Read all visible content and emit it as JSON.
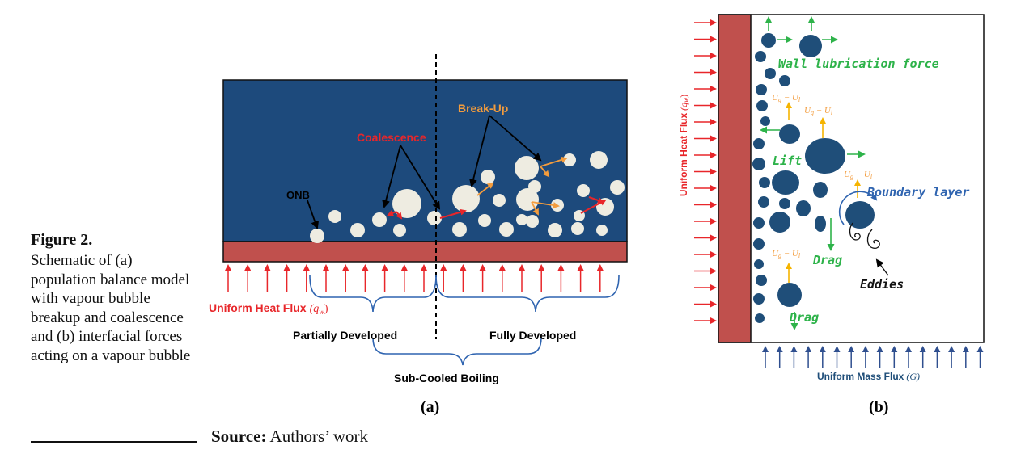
{
  "caption": {
    "label": "Figure 2.",
    "text": "Schematic of (a) population balance model with vapour bubble breakup and coalescence and (b) interfacial forces acting on a vapour bubble"
  },
  "source": {
    "label": "Source:",
    "text": " Authors’ work"
  },
  "panel_a": {
    "tag": "(a)",
    "onb": "ONB",
    "coalescence": "Coalescence",
    "breakup": "Break-Up",
    "heat_flux": "Uniform Heat Flux",
    "heat_flux_symbol": "(q",
    "heat_flux_sub": "w",
    "heat_flux_close": ")",
    "partially": "Partially Developed",
    "fully": "Fully Developed",
    "subcooled": "Sub-Cooled Boiling"
  },
  "panel_b": {
    "tag": "(b)",
    "heat_flux": "Uniform Heat Flux",
    "heat_flux_symbol": "(q",
    "heat_flux_sub": "w",
    "heat_flux_close": ")",
    "mass_flux": "Uniform Mass Flux",
    "mass_flux_symbol": "(G)",
    "wall_lubrication": "Wall lubrication force",
    "lift": "Lift",
    "drag_1": "Drag",
    "drag_2": "Drag",
    "boundary_layer": "Boundary layer",
    "eddies": "Eddies",
    "ug": "U",
    "ug_sub": "g",
    "minus": " − U",
    "ul_sub": "l"
  },
  "colors": {
    "liquid": "#1d4a7c",
    "wall": "#c0504d",
    "bubble": "#eeece1",
    "bubble_b": "#1f4e79",
    "heat_arrow": "#e8262a",
    "green": "#2eb34a",
    "orange": "#f39c3d",
    "boundary": "#2f64b0"
  }
}
